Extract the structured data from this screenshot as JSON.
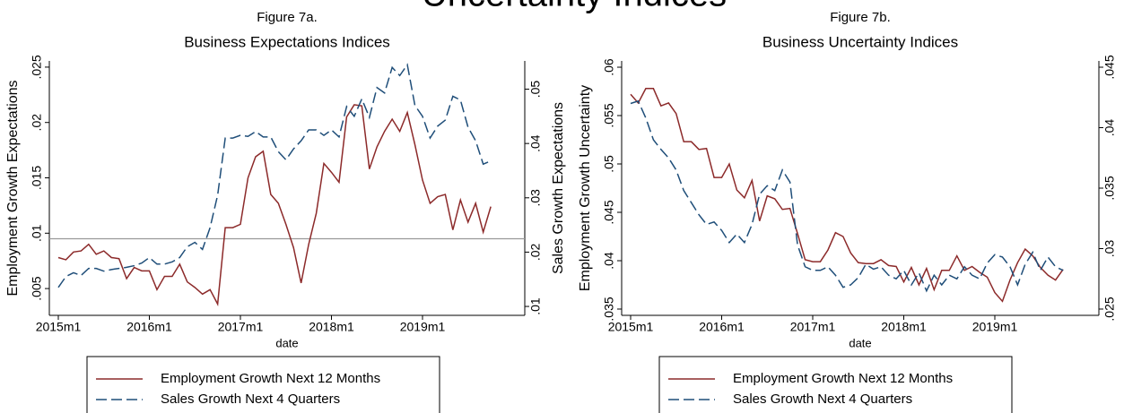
{
  "heading": "Uncertainty Indices",
  "chart_data": [
    {
      "type": "line",
      "figure_label": "Figure 7a.",
      "title": "Business Expectations Indices",
      "xlabel": "date",
      "ylabel": "Employment Growth Expectations",
      "y2label": "Sales Growth Expectations",
      "x": [
        "2015m1",
        "2015m2",
        "2015m3",
        "2015m4",
        "2015m5",
        "2015m6",
        "2015m7",
        "2015m8",
        "2015m9",
        "2015m10",
        "2015m11",
        "2015m12",
        "2016m1",
        "2016m2",
        "2016m3",
        "2016m4",
        "2016m5",
        "2016m6",
        "2016m7",
        "2016m8",
        "2016m9",
        "2016m10",
        "2016m11",
        "2016m12",
        "2017m1",
        "2017m2",
        "2017m3",
        "2017m4",
        "2017m5",
        "2017m6",
        "2017m7",
        "2017m8",
        "2017m9",
        "2017m10",
        "2017m11",
        "2017m12",
        "2018m1",
        "2018m2",
        "2018m3",
        "2018m4",
        "2018m5",
        "2018m6",
        "2018m7",
        "2018m8",
        "2018m9",
        "2018m10",
        "2018m11",
        "2018m12",
        "2019m1",
        "2019m2",
        "2019m3",
        "2019m4",
        "2019m5",
        "2019m6",
        "2019m7",
        "2019m8",
        "2019m9",
        "2019m10"
      ],
      "xticks": [
        "2015m1",
        "2016m1",
        "2017m1",
        "2018m1",
        "2019m1"
      ],
      "ylim": [
        0.00258,
        0.02556
      ],
      "yticks": [
        {
          "value": 0.005,
          "label": ".005"
        },
        {
          "value": 0.01,
          "label": ".01"
        },
        {
          "value": 0.015,
          "label": ".015"
        },
        {
          "value": 0.02,
          "label": ".02"
        },
        {
          "value": 0.025,
          "label": ".025"
        }
      ],
      "y2lim": [
        0.00836,
        0.0552
      ],
      "y2ticks": [
        {
          "value": 0.01,
          "label": ".01"
        },
        {
          "value": 0.02,
          "label": ".02"
        },
        {
          "value": 0.03,
          "label": ".03"
        },
        {
          "value": 0.04,
          "label": ".04"
        },
        {
          "value": 0.05,
          "label": ".05"
        }
      ],
      "reference_line": {
        "value": 0.0095,
        "color": "#999999"
      },
      "series": [
        {
          "name": "Employment Growth Next 12 Months",
          "color": "#8c2a2a",
          "dash": "solid",
          "axis": "y",
          "values": [
            0.0078,
            0.0076,
            0.0083,
            0.0084,
            0.009,
            0.0081,
            0.0084,
            0.0078,
            0.0077,
            0.0059,
            0.0069,
            0.0066,
            0.0066,
            0.0049,
            0.0061,
            0.0061,
            0.0072,
            0.0056,
            0.0051,
            0.0045,
            0.0049,
            0.0036,
            0.0105,
            0.0105,
            0.0108,
            0.015,
            0.0169,
            0.0174,
            0.0135,
            0.0127,
            0.0108,
            0.0087,
            0.0055,
            0.009,
            0.0118,
            0.0163,
            0.0155,
            0.0146,
            0.0205,
            0.0216,
            0.0215,
            0.0158,
            0.0178,
            0.0192,
            0.0203,
            0.0192,
            0.0209,
            0.018,
            0.0148,
            0.0127,
            0.0133,
            0.0135,
            0.0103,
            0.013,
            0.011,
            0.0127,
            0.0101,
            0.0124
          ]
        },
        {
          "name": "Sales Growth Next 4 Quarters",
          "color": "#1f4e79",
          "dash": "dashed",
          "axis": "y2",
          "values": [
            0.0135,
            0.0155,
            0.0162,
            0.0157,
            0.017,
            0.017,
            0.0165,
            0.0168,
            0.017,
            0.0172,
            0.0175,
            0.018,
            0.019,
            0.0178,
            0.0178,
            0.0182,
            0.019,
            0.021,
            0.0218,
            0.0205,
            0.0245,
            0.0305,
            0.041,
            0.041,
            0.0415,
            0.0413,
            0.0422,
            0.0412,
            0.0412,
            0.0385,
            0.037,
            0.039,
            0.0405,
            0.0425,
            0.0425,
            0.0415,
            0.0425,
            0.0412,
            0.0468,
            0.045,
            0.0482,
            0.0448,
            0.0503,
            0.0493,
            0.054,
            0.0525,
            0.0545,
            0.047,
            0.045,
            0.041,
            0.0432,
            0.0443,
            0.0487,
            0.048,
            0.043,
            0.0405,
            0.0362,
            0.0368
          ]
        }
      ]
    },
    {
      "type": "line",
      "figure_label": "Figure 7b.",
      "title": "Business Uncertainty Indices",
      "xlabel": "date",
      "ylabel": "Employment Growth Uncertainty",
      "y2label": "Sales Growth Uncertainty",
      "x": [
        "2015m1",
        "2015m2",
        "2015m3",
        "2015m4",
        "2015m5",
        "2015m6",
        "2015m7",
        "2015m8",
        "2015m9",
        "2015m10",
        "2015m11",
        "2015m12",
        "2016m1",
        "2016m2",
        "2016m3",
        "2016m4",
        "2016m5",
        "2016m6",
        "2016m7",
        "2016m8",
        "2016m9",
        "2016m10",
        "2016m11",
        "2016m12",
        "2017m1",
        "2017m2",
        "2017m3",
        "2017m4",
        "2017m5",
        "2017m6",
        "2017m7",
        "2017m8",
        "2017m9",
        "2017m10",
        "2017m11",
        "2017m12",
        "2018m1",
        "2018m2",
        "2018m3",
        "2018m4",
        "2018m5",
        "2018m6",
        "2018m7",
        "2018m8",
        "2018m9",
        "2018m10",
        "2018m11",
        "2018m12",
        "2019m1",
        "2019m2",
        "2019m3",
        "2019m4",
        "2019m5",
        "2019m6",
        "2019m7",
        "2019m8",
        "2019m9",
        "2019m10"
      ],
      "xticks": [
        "2015m1",
        "2016m1",
        "2017m1",
        "2018m1",
        "2019m1"
      ],
      "ylim": [
        0.03435,
        0.06065
      ],
      "yticks": [
        {
          "value": 0.035,
          "label": ".035"
        },
        {
          "value": 0.04,
          "label": ".04"
        },
        {
          "value": 0.045,
          "label": ".045"
        },
        {
          "value": 0.05,
          "label": ".05"
        },
        {
          "value": 0.055,
          "label": ".055"
        },
        {
          "value": 0.06,
          "label": ".06"
        }
      ],
      "y2lim": [
        0.02448,
        0.04552
      ],
      "y2ticks": [
        {
          "value": 0.025,
          "label": ".025"
        },
        {
          "value": 0.03,
          "label": ".03"
        },
        {
          "value": 0.035,
          "label": ".035"
        },
        {
          "value": 0.04,
          "label": ".04"
        },
        {
          "value": 0.045,
          "label": ".045"
        }
      ],
      "series": [
        {
          "name": "Employment Growth Next 12 Months",
          "color": "#8c2a2a",
          "dash": "solid",
          "axis": "y",
          "values": [
            0.0572,
            0.0563,
            0.0578,
            0.0578,
            0.056,
            0.0563,
            0.0552,
            0.0523,
            0.0523,
            0.0515,
            0.0516,
            0.0486,
            0.0486,
            0.05,
            0.0473,
            0.0465,
            0.0483,
            0.0441,
            0.0467,
            0.0464,
            0.0453,
            0.0454,
            0.0428,
            0.0401,
            0.0399,
            0.0399,
            0.0411,
            0.0429,
            0.0425,
            0.0408,
            0.0398,
            0.0397,
            0.0397,
            0.0401,
            0.0395,
            0.0394,
            0.0378,
            0.0393,
            0.0375,
            0.0392,
            0.037,
            0.039,
            0.039,
            0.0405,
            0.039,
            0.0394,
            0.0388,
            0.0383,
            0.0367,
            0.0358,
            0.038,
            0.0398,
            0.0412,
            0.0405,
            0.0393,
            0.0385,
            0.038,
            0.0391
          ]
        },
        {
          "name": "Sales Growth Next 4 Quarters",
          "color": "#1f4e79",
          "dash": "dashed",
          "axis": "y2",
          "values": [
            0.042,
            0.0422,
            0.0408,
            0.039,
            0.0382,
            0.0375,
            0.0365,
            0.0348,
            0.0338,
            0.0328,
            0.032,
            0.0322,
            0.0315,
            0.0305,
            0.0312,
            0.0305,
            0.032,
            0.0345,
            0.0352,
            0.0348,
            0.0365,
            0.0355,
            0.0303,
            0.0285,
            0.0282,
            0.0282,
            0.0285,
            0.0278,
            0.0268,
            0.027,
            0.0276,
            0.0287,
            0.0283,
            0.0285,
            0.0278,
            0.0275,
            0.0282,
            0.027,
            0.028,
            0.0265,
            0.0278,
            0.027,
            0.0278,
            0.0275,
            0.0285,
            0.0278,
            0.0275,
            0.0288,
            0.0295,
            0.0293,
            0.0285,
            0.027,
            0.0287,
            0.0297,
            0.0282,
            0.0293,
            0.0285,
            0.0282
          ]
        }
      ]
    }
  ]
}
